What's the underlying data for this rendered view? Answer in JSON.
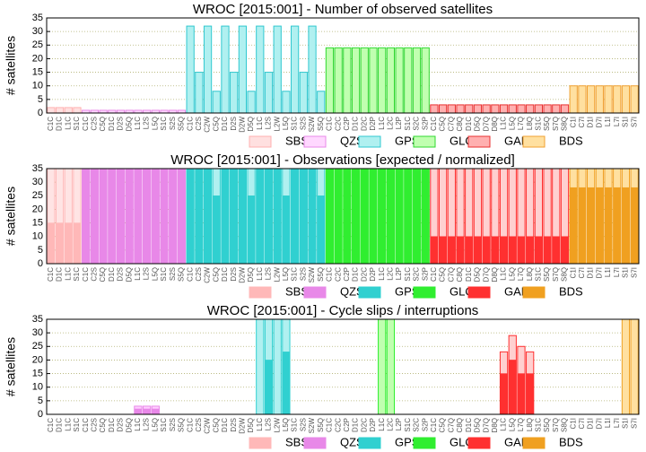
{
  "charts": [
    {
      "chart_data": {
        "type": "bar",
        "title": "WROC [2015:001] - Number of observed satellites",
        "ylabel": "# satellites",
        "ylim": [
          0,
          35
        ],
        "yticks": [
          0,
          5,
          10,
          15,
          20,
          25,
          30,
          35
        ],
        "grid": true,
        "legend": "bottom-right",
        "series": [
          {
            "name": "SBS",
            "color": "#ffb0b0",
            "light": "#ffe0e0",
            "categories": [
              "C1C",
              "D1C",
              "L1C",
              "S1C"
            ],
            "values": [
              2,
              2,
              2,
              2
            ]
          },
          {
            "name": "QZS",
            "color": "#e888e8",
            "light": "#ffd8ff",
            "categories": [
              "C1C",
              "C2S",
              "C5Q",
              "D1C",
              "D2S",
              "D5Q",
              "L1C",
              "L2S",
              "L5Q",
              "S1C",
              "S2S",
              "S5Q"
            ],
            "values": [
              1,
              1,
              1,
              1,
              1,
              1,
              1,
              1,
              1,
              1,
              1,
              1
            ]
          },
          {
            "name": "GPS",
            "color": "#30c8d0",
            "light": "#b0f0f0",
            "categories": [
              "C1C",
              "C2S",
              "C2W",
              "C5Q",
              "D1C",
              "D2S",
              "D2W",
              "D5Q",
              "L1C",
              "L2S",
              "L2W",
              "L5Q",
              "S1C",
              "S2S",
              "S2W",
              "S5Q"
            ],
            "values": [
              32,
              15,
              32,
              8,
              32,
              15,
              32,
              8,
              32,
              15,
              32,
              8,
              32,
              15,
              32,
              8
            ]
          },
          {
            "name": "GLO",
            "color": "#30d830",
            "light": "#c0ffb0",
            "categories": [
              "C1C",
              "C2C",
              "C2P",
              "D1C",
              "D2C",
              "D2P",
              "L1C",
              "L2C",
              "L2P",
              "S1C",
              "S2C",
              "S2P"
            ],
            "values": [
              24,
              24,
              24,
              24,
              24,
              24,
              24,
              24,
              24,
              24,
              24,
              24
            ]
          },
          {
            "name": "GAL",
            "color": "#e83030",
            "light": "#ffb0b0",
            "categories": [
              "C1C",
              "C5Q",
              "C7Q",
              "C8Q",
              "D1C",
              "D5Q",
              "D7Q",
              "D8Q",
              "L1C",
              "L5Q",
              "L7Q",
              "L8Q",
              "S1C",
              "S5Q",
              "S7Q",
              "S8Q"
            ],
            "values": [
              3,
              3,
              3,
              3,
              3,
              3,
              3,
              3,
              3,
              3,
              3,
              3,
              3,
              3,
              3,
              3
            ]
          },
          {
            "name": "BDS",
            "color": "#f0a030",
            "light": "#ffe0a0",
            "categories": [
              "C1I",
              "C7I",
              "D1I",
              "D7I",
              "L1I",
              "L7I",
              "S1I",
              "S7I"
            ],
            "values": [
              10,
              10,
              10,
              10,
              10,
              10,
              10,
              10
            ]
          }
        ]
      }
    },
    {
      "chart_data": {
        "type": "bar",
        "title": "WROC [2015:001] - Observations [expected / normalized]",
        "ylabel": "# satellites",
        "ylim": [
          0,
          35
        ],
        "yticks": [
          0,
          5,
          10,
          15,
          20,
          25,
          30,
          35
        ],
        "grid": true,
        "legend": "bottom-right",
        "series": [
          {
            "name": "SBS",
            "color": "#ffb8b8",
            "light": "#ffe4e4",
            "categories": [
              "C1C",
              "D1C",
              "L1C",
              "S1C"
            ],
            "values": [
              35,
              35,
              35,
              35
            ],
            "inner": [
              15,
              15,
              15,
              15
            ]
          },
          {
            "name": "QZS",
            "color": "#e888e8",
            "light": "#ffd0ff",
            "categories": [
              "C1C",
              "C2S",
              "C5Q",
              "D1C",
              "D2S",
              "D5Q",
              "L1C",
              "L2S",
              "L5Q",
              "S1C",
              "S2S",
              "S5Q"
            ],
            "values": [
              35,
              35,
              35,
              35,
              35,
              35,
              35,
              35,
              35,
              35,
              35,
              35
            ],
            "inner": [
              35,
              35,
              35,
              35,
              35,
              35,
              35,
              35,
              35,
              35,
              35,
              35
            ]
          },
          {
            "name": "GPS",
            "color": "#30d0d0",
            "light": "#b0f0f0",
            "categories": [
              "C1C",
              "C2S",
              "C2W",
              "C5Q",
              "D1C",
              "D2S",
              "D2W",
              "D5Q",
              "L1C",
              "L2S",
              "L2W",
              "L5Q",
              "S1C",
              "S2S",
              "S2W",
              "S5Q"
            ],
            "values": [
              35,
              35,
              35,
              35,
              35,
              35,
              35,
              35,
              35,
              35,
              35,
              35,
              35,
              35,
              35,
              35
            ],
            "inner": [
              35,
              35,
              35,
              25,
              35,
              35,
              35,
              25,
              35,
              35,
              35,
              25,
              35,
              35,
              35,
              25
            ]
          },
          {
            "name": "GLO",
            "color": "#30ee30",
            "light": "#c0ffb0",
            "categories": [
              "C1C",
              "C2C",
              "C2P",
              "D1C",
              "D2C",
              "D2P",
              "L1C",
              "L2C",
              "L2P",
              "S1C",
              "S2C",
              "S2P"
            ],
            "values": [
              35,
              35,
              35,
              35,
              35,
              35,
              35,
              35,
              35,
              35,
              35,
              35
            ],
            "inner": [
              35,
              35,
              35,
              35,
              35,
              35,
              35,
              35,
              35,
              35,
              35,
              35
            ]
          },
          {
            "name": "GAL",
            "color": "#ff3030",
            "light": "#ffd0d0",
            "categories": [
              "C1C",
              "C5Q",
              "C7Q",
              "C8Q",
              "D1C",
              "D5Q",
              "D7Q",
              "D8Q",
              "L1C",
              "L5Q",
              "L7Q",
              "L8Q",
              "S1C",
              "S5Q",
              "S7Q",
              "S8Q"
            ],
            "values": [
              35,
              35,
              35,
              35,
              35,
              35,
              35,
              35,
              35,
              35,
              35,
              35,
              35,
              35,
              35,
              35
            ],
            "inner": [
              10,
              10,
              10,
              10,
              10,
              10,
              10,
              10,
              10,
              10,
              10,
              10,
              10,
              10,
              10,
              10
            ]
          },
          {
            "name": "BDS",
            "color": "#f0a020",
            "light": "#ffe0a0",
            "categories": [
              "C1I",
              "C7I",
              "D1I",
              "D7I",
              "L1I",
              "L7I",
              "S1I",
              "S7I"
            ],
            "values": [
              35,
              35,
              35,
              35,
              35,
              35,
              35,
              35
            ],
            "inner": [
              28,
              28,
              28,
              28,
              28,
              28,
              28,
              28
            ]
          }
        ]
      }
    },
    {
      "chart_data": {
        "type": "bar",
        "title": "WROC [2015:001] - Cycle slips / interruptions",
        "ylabel": "# satellites",
        "ylim": [
          0,
          35
        ],
        "yticks": [
          0,
          5,
          10,
          15,
          20,
          25,
          30,
          35
        ],
        "grid": true,
        "legend": "bottom-right",
        "series": [
          {
            "name": "SBS",
            "color": "#ffb8b8",
            "light": "#ffe4e4",
            "categories": [
              "C1C",
              "D1C",
              "L1C",
              "S1C"
            ],
            "values": [
              0,
              0,
              0,
              0
            ],
            "inner": [
              0,
              0,
              0,
              0
            ]
          },
          {
            "name": "QZS",
            "color": "#e888e8",
            "light": "#ffd0ff",
            "categories": [
              "C1C",
              "C2S",
              "C5Q",
              "D1C",
              "D2S",
              "D5Q",
              "L1C",
              "L2S",
              "L5Q",
              "S1C",
              "S2S",
              "S5Q"
            ],
            "values": [
              0,
              0,
              0,
              0,
              0,
              0,
              3,
              3,
              3,
              0,
              0,
              0
            ],
            "inner": [
              0,
              0,
              0,
              0,
              0,
              0,
              2,
              2,
              2,
              0,
              0,
              0
            ]
          },
          {
            "name": "GPS",
            "color": "#30d0d0",
            "light": "#b0f0f0",
            "categories": [
              "C1C",
              "C2S",
              "C2W",
              "C5Q",
              "D1C",
              "D2S",
              "D2W",
              "D5Q",
              "L1C",
              "L2S",
              "L2W",
              "L5Q",
              "S1C",
              "S2S",
              "S2W",
              "S5Q"
            ],
            "values": [
              0,
              0,
              0,
              0,
              0,
              0,
              0,
              0,
              35,
              35,
              35,
              35,
              0,
              0,
              0,
              0
            ],
            "inner": [
              0,
              0,
              0,
              0,
              0,
              0,
              0,
              0,
              0,
              20,
              0,
              23,
              0,
              0,
              0,
              0
            ]
          },
          {
            "name": "GLO",
            "color": "#30ee30",
            "light": "#c0ffb0",
            "categories": [
              "C1C",
              "C2C",
              "C2P",
              "D1C",
              "D2C",
              "D2P",
              "L1C",
              "L2C",
              "L2P",
              "S1C",
              "S2C",
              "S2P"
            ],
            "values": [
              0,
              0,
              0,
              0,
              0,
              0,
              35,
              35,
              0,
              0,
              0,
              0
            ],
            "inner": [
              0,
              0,
              0,
              0,
              0,
              0,
              0,
              0,
              0,
              0,
              0,
              0
            ]
          },
          {
            "name": "GAL",
            "color": "#ff3030",
            "light": "#ffd0d0",
            "categories": [
              "C1C",
              "C5Q",
              "C7Q",
              "C8Q",
              "D1C",
              "D5Q",
              "D7Q",
              "D8Q",
              "L1C",
              "L5Q",
              "L7Q",
              "L8Q",
              "S1C",
              "S5Q",
              "S7Q",
              "S8Q"
            ],
            "values": [
              0,
              0,
              0,
              0,
              0,
              0,
              0,
              0,
              23,
              29,
              25,
              23,
              0,
              0,
              0,
              0
            ],
            "inner": [
              0,
              0,
              0,
              0,
              0,
              0,
              0,
              0,
              15,
              20,
              15,
              15,
              0,
              0,
              0,
              0
            ]
          },
          {
            "name": "BDS",
            "color": "#f0a020",
            "light": "#ffe0a0",
            "categories": [
              "C1I",
              "C7I",
              "D1I",
              "D7I",
              "L1I",
              "L7I",
              "S1I",
              "S7I"
            ],
            "values": [
              0,
              0,
              0,
              0,
              0,
              0,
              35,
              35
            ],
            "inner": [
              0,
              0,
              0,
              0,
              0,
              0,
              0,
              0
            ]
          }
        ]
      }
    }
  ]
}
